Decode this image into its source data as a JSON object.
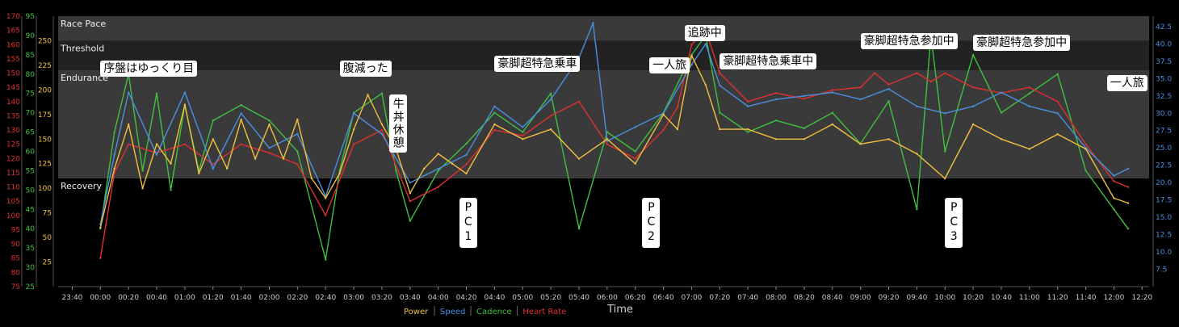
{
  "chart_data": {
    "type": "line",
    "xlabel": "Time",
    "x_ticks": [
      "23:40",
      "00:00",
      "00:20",
      "00:40",
      "01:00",
      "01:20",
      "01:40",
      "02:00",
      "02:20",
      "02:40",
      "03:00",
      "03:20",
      "03:40",
      "04:00",
      "04:20",
      "04:40",
      "05:00",
      "05:20",
      "05:40",
      "06:00",
      "06:20",
      "06:40",
      "07:00",
      "07:20",
      "07:40",
      "08:00",
      "08:20",
      "08:40",
      "09:00",
      "09:20",
      "09:40",
      "10:00",
      "10:20",
      "10:40",
      "11:00",
      "11:20",
      "11:40",
      "12:00",
      "12:20"
    ],
    "xlim": [
      "23:30",
      "12:25"
    ],
    "axes": [
      {
        "id": "hr",
        "side": "left",
        "color": "#e03030",
        "range": [
          75,
          170
        ],
        "ticks": [
          "75",
          "80",
          "85",
          "90",
          "95",
          "100",
          "105",
          "110",
          "115",
          "120",
          "125",
          "130",
          "135",
          "140",
          "145",
          "150",
          "155",
          "160",
          "165",
          "170"
        ]
      },
      {
        "id": "cadence",
        "side": "left",
        "color": "#40c040",
        "range": [
          25,
          95
        ],
        "ticks": [
          "25",
          "30",
          "35",
          "40",
          "45",
          "50",
          "55",
          "60",
          "65",
          "70",
          "75",
          "80",
          "85",
          "90",
          "95"
        ]
      },
      {
        "id": "power",
        "side": "left",
        "color": "#f0c040",
        "range": [
          0,
          275
        ],
        "ticks": [
          "25",
          "50",
          "75",
          "100",
          "125",
          "150",
          "175",
          "200",
          "225",
          "250"
        ]
      },
      {
        "id": "speed",
        "side": "right",
        "color": "#4a90e0",
        "range": [
          5.0,
          44.0
        ],
        "ticks": [
          "7.5",
          "10.0",
          "12.5",
          "15.0",
          "17.5",
          "20.0",
          "22.5",
          "25.0",
          "27.5",
          "30.0",
          "32.5",
          "35.0",
          "37.5",
          "40.0",
          "42.5"
        ]
      }
    ],
    "zones": [
      {
        "label": "Race Pace",
        "from": 250,
        "to": 275
      },
      {
        "label": "Threshold",
        "from": 220,
        "to": 250
      },
      {
        "label": "Endurance",
        "from": 110,
        "to": 220
      },
      {
        "label": "Recovery",
        "from": 0,
        "to": 110
      }
    ],
    "series": [
      {
        "name": "Power",
        "color": "#f0c040",
        "axis": "power",
        "points": [
          [
            "00:00",
            60
          ],
          [
            "00:10",
            120
          ],
          [
            "00:20",
            165
          ],
          [
            "00:30",
            100
          ],
          [
            "00:40",
            145
          ],
          [
            "00:50",
            125
          ],
          [
            "01:00",
            185
          ],
          [
            "01:10",
            115
          ],
          [
            "01:20",
            150
          ],
          [
            "01:30",
            120
          ],
          [
            "01:40",
            170
          ],
          [
            "01:50",
            130
          ],
          [
            "02:00",
            165
          ],
          [
            "02:10",
            130
          ],
          [
            "02:20",
            170
          ],
          [
            "02:30",
            110
          ],
          [
            "02:40",
            90
          ],
          [
            "02:50",
            115
          ],
          [
            "03:00",
            160
          ],
          [
            "03:10",
            195
          ],
          [
            "03:20",
            165
          ],
          [
            "03:30",
            140
          ],
          [
            "03:40",
            95
          ],
          [
            "03:50",
            120
          ],
          [
            "04:00",
            135
          ],
          [
            "04:10",
            125
          ],
          [
            "04:20",
            115
          ],
          [
            "04:40",
            165
          ],
          [
            "05:00",
            150
          ],
          [
            "05:20",
            160
          ],
          [
            "05:40",
            130
          ],
          [
            "06:00",
            150
          ],
          [
            "06:20",
            125
          ],
          [
            "06:40",
            175
          ],
          [
            "06:50",
            160
          ],
          [
            "07:00",
            235
          ],
          [
            "07:10",
            205
          ],
          [
            "07:20",
            160
          ],
          [
            "07:40",
            160
          ],
          [
            "08:00",
            150
          ],
          [
            "08:20",
            150
          ],
          [
            "08:40",
            165
          ],
          [
            "09:00",
            145
          ],
          [
            "09:20",
            150
          ],
          [
            "09:40",
            135
          ],
          [
            "10:00",
            110
          ],
          [
            "10:20",
            165
          ],
          [
            "10:40",
            150
          ],
          [
            "11:00",
            140
          ],
          [
            "11:20",
            155
          ],
          [
            "11:40",
            140
          ],
          [
            "12:00",
            90
          ],
          [
            "12:10",
            85
          ]
        ]
      },
      {
        "name": "Speed",
        "color": "#4a90e0",
        "axis": "speed",
        "points": [
          [
            "00:00",
            14.0
          ],
          [
            "00:10",
            24.0
          ],
          [
            "00:20",
            33.0
          ],
          [
            "00:40",
            24.0
          ],
          [
            "01:00",
            33.0
          ],
          [
            "01:20",
            22.0
          ],
          [
            "01:40",
            30.0
          ],
          [
            "02:00",
            25.0
          ],
          [
            "02:20",
            27.0
          ],
          [
            "02:40",
            18.0
          ],
          [
            "03:00",
            30.0
          ],
          [
            "03:20",
            27.0
          ],
          [
            "03:40",
            20.0
          ],
          [
            "04:00",
            22.0
          ],
          [
            "04:20",
            24.0
          ],
          [
            "04:40",
            31.0
          ],
          [
            "05:00",
            28.0
          ],
          [
            "05:20",
            32.0
          ],
          [
            "05:40",
            38.0
          ],
          [
            "05:50",
            43.0
          ],
          [
            "06:00",
            26.0
          ],
          [
            "06:20",
            28.0
          ],
          [
            "06:40",
            30.0
          ],
          [
            "07:00",
            37.0
          ],
          [
            "07:10",
            40.0
          ],
          [
            "07:20",
            34.0
          ],
          [
            "07:40",
            31.0
          ],
          [
            "08:00",
            32.0
          ],
          [
            "08:20",
            32.5
          ],
          [
            "08:40",
            33.0
          ],
          [
            "09:00",
            32.0
          ],
          [
            "09:20",
            33.5
          ],
          [
            "09:40",
            31.0
          ],
          [
            "10:00",
            30.0
          ],
          [
            "10:20",
            31.0
          ],
          [
            "10:40",
            33.0
          ],
          [
            "11:00",
            31.0
          ],
          [
            "11:20",
            30.0
          ],
          [
            "11:40",
            25.0
          ],
          [
            "12:00",
            21.0
          ],
          [
            "12:10",
            22.0
          ]
        ]
      },
      {
        "name": "Cadence",
        "color": "#40c040",
        "axis": "cadence",
        "points": [
          [
            "00:00",
            40
          ],
          [
            "00:10",
            65
          ],
          [
            "00:20",
            80
          ],
          [
            "00:30",
            55
          ],
          [
            "00:40",
            75
          ],
          [
            "00:50",
            50
          ],
          [
            "01:00",
            72
          ],
          [
            "01:10",
            55
          ],
          [
            "01:20",
            68
          ],
          [
            "01:40",
            72
          ],
          [
            "02:00",
            68
          ],
          [
            "02:20",
            60
          ],
          [
            "02:40",
            32
          ],
          [
            "02:50",
            55
          ],
          [
            "03:00",
            70
          ],
          [
            "03:20",
            75
          ],
          [
            "03:30",
            55
          ],
          [
            "03:40",
            42
          ],
          [
            "04:00",
            55
          ],
          [
            "04:20",
            62
          ],
          [
            "04:40",
            70
          ],
          [
            "05:00",
            65
          ],
          [
            "05:20",
            75
          ],
          [
            "05:40",
            40
          ],
          [
            "06:00",
            65
          ],
          [
            "06:20",
            60
          ],
          [
            "06:40",
            70
          ],
          [
            "07:00",
            85
          ],
          [
            "07:10",
            90
          ],
          [
            "07:20",
            70
          ],
          [
            "07:40",
            65
          ],
          [
            "08:00",
            68
          ],
          [
            "08:20",
            66
          ],
          [
            "08:40",
            70
          ],
          [
            "09:00",
            62
          ],
          [
            "09:20",
            73
          ],
          [
            "09:40",
            45
          ],
          [
            "09:50",
            90
          ],
          [
            "10:00",
            60
          ],
          [
            "10:20",
            85
          ],
          [
            "10:40",
            70
          ],
          [
            "11:00",
            75
          ],
          [
            "11:20",
            80
          ],
          [
            "11:40",
            55
          ],
          [
            "12:00",
            45
          ],
          [
            "12:10",
            40
          ]
        ]
      },
      {
        "name": "Heart Rate",
        "color": "#e03030",
        "axis": "hr",
        "points": [
          [
            "00:00",
            85
          ],
          [
            "00:10",
            115
          ],
          [
            "00:20",
            125
          ],
          [
            "00:40",
            122
          ],
          [
            "01:00",
            125
          ],
          [
            "01:20",
            118
          ],
          [
            "01:40",
            125
          ],
          [
            "02:00",
            122
          ],
          [
            "02:20",
            118
          ],
          [
            "02:40",
            100
          ],
          [
            "03:00",
            125
          ],
          [
            "03:20",
            130
          ],
          [
            "03:40",
            105
          ],
          [
            "04:00",
            110
          ],
          [
            "04:20",
            118
          ],
          [
            "04:40",
            130
          ],
          [
            "05:00",
            128
          ],
          [
            "05:20",
            135
          ],
          [
            "05:40",
            140
          ],
          [
            "06:00",
            125
          ],
          [
            "06:20",
            120
          ],
          [
            "06:40",
            130
          ],
          [
            "06:50",
            138
          ],
          [
            "07:00",
            160
          ],
          [
            "07:10",
            165
          ],
          [
            "07:20",
            150
          ],
          [
            "07:40",
            140
          ],
          [
            "08:00",
            143
          ],
          [
            "08:20",
            141
          ],
          [
            "08:40",
            144
          ],
          [
            "09:00",
            145
          ],
          [
            "09:10",
            150
          ],
          [
            "09:20",
            146
          ],
          [
            "09:40",
            150
          ],
          [
            "09:50",
            147
          ],
          [
            "10:00",
            150
          ],
          [
            "10:20",
            145
          ],
          [
            "10:40",
            143
          ],
          [
            "11:00",
            145
          ],
          [
            "11:20",
            140
          ],
          [
            "11:40",
            125
          ],
          [
            "12:00",
            112
          ],
          [
            "12:10",
            110
          ]
        ]
      }
    ],
    "legend": [
      "Power",
      "Speed",
      "Cadence",
      "Heart Rate"
    ],
    "legend_placement": "bottom-center",
    "grid": false
  },
  "annotations": [
    {
      "text": "序盤はゆっくり目",
      "time": "00:00",
      "value": 230,
      "vertical": false
    },
    {
      "text": "腹減った",
      "time": "02:50",
      "value": 230,
      "vertical": false
    },
    {
      "text": "牛丼休憩",
      "time": "03:25",
      "value": 195,
      "vertical": true
    },
    {
      "text": "PC1",
      "time": "04:15",
      "value": 90,
      "vertical": true
    },
    {
      "text": "豪脚超特急乗車",
      "time": "04:40",
      "value": 235,
      "vertical": false
    },
    {
      "text": "PC2",
      "time": "06:25",
      "value": 90,
      "vertical": true
    },
    {
      "text": "一人旅",
      "time": "06:30",
      "value": 233,
      "vertical": false
    },
    {
      "text": "追跡中",
      "time": "06:55",
      "value": 266,
      "vertical": false
    },
    {
      "text": "豪脚超特急乗車中",
      "time": "07:20",
      "value": 237,
      "vertical": false
    },
    {
      "text": "豪脚超特急参加中",
      "time": "09:00",
      "value": 258,
      "vertical": false
    },
    {
      "text": "PC3",
      "time": "10:00",
      "value": 90,
      "vertical": true
    },
    {
      "text": "豪脚超特急参加中",
      "time": "10:20",
      "value": 256,
      "vertical": false
    },
    {
      "text": "一人旅",
      "time": "11:55",
      "value": 215,
      "vertical": false
    }
  ]
}
